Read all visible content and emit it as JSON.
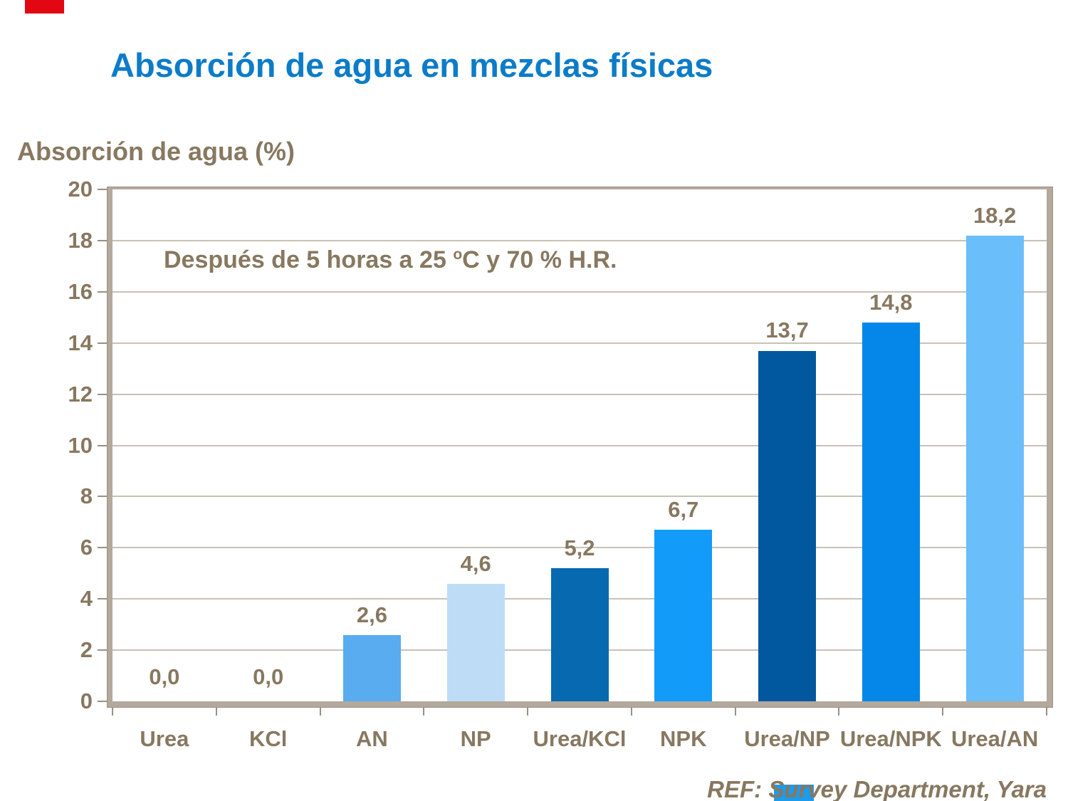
{
  "slide": {
    "title": "Absorción de agua en mezclas físicas",
    "title_color": "#0C7CC8",
    "text_color": "#877860",
    "footer_ref": "REF: Survey Department, Yara",
    "accent_red_color": "#E30613",
    "accent_blue_color": "#1E9BE9"
  },
  "chart_data": {
    "type": "bar",
    "title": "Absorción de agua en mezclas físicas",
    "ylabel": "Absorción de agua (%)",
    "xlabel": "",
    "annotation": {
      "pre": "Después de 5 horas a 25 ",
      "sup": "o",
      "post": "C y 70 % H.R."
    },
    "categories": [
      "Urea",
      "KCl",
      "AN",
      "NP",
      "Urea/KCl",
      "NPK",
      "Urea/NP",
      "Urea/NPK",
      "Urea/AN"
    ],
    "values": [
      0.0,
      0.0,
      2.6,
      4.6,
      5.2,
      6.7,
      13.7,
      14.8,
      18.2
    ],
    "value_labels": [
      "0,0",
      "0,0",
      "2,6",
      "4,6",
      "5,2",
      "6,7",
      "13,7",
      "14,8",
      "18,2"
    ],
    "bar_colors": [
      "",
      "",
      "#58ACEF",
      "#BEDCF6",
      "#0769AF",
      "#129BF9",
      "#02589E",
      "#0587E9",
      "#6ABEF9"
    ],
    "ylim": [
      0,
      20
    ],
    "ytick_step": 2,
    "grid": true,
    "legend_position": "none",
    "decimal_separator": ",",
    "colors": {
      "grid": "#C9C1B5",
      "frame": "#B3A99C",
      "frame_edge": "#9B9183",
      "tick": "#9A9082"
    }
  }
}
